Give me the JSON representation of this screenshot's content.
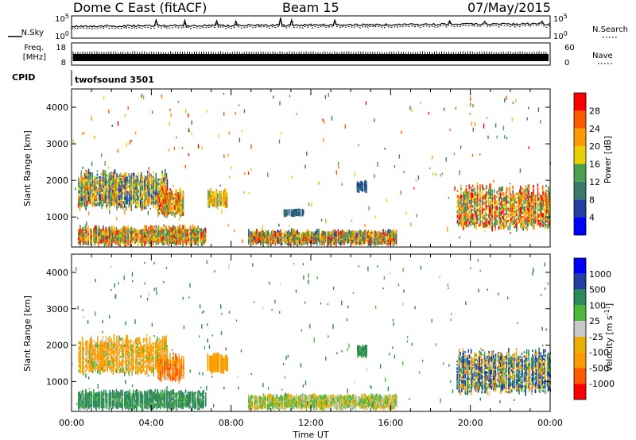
{
  "header": {
    "station": "Dome C East (fitACF)",
    "beam": "Beam 15",
    "date": "07/May/2015"
  },
  "summary_panels": {
    "nsky_label": "N.Sky",
    "nsearch_label": "N.Search",
    "nsky_ticks": [
      "10^5",
      "10^0"
    ],
    "freq_label_line1": "Freq.",
    "freq_label_line2": "[MHz]",
    "freq_ticks": [
      "18",
      "8"
    ],
    "nave_label": "Nave",
    "nave_ticks": [
      "60",
      "0"
    ],
    "cpid_label": "CPID",
    "cpid_value": "twofsound 3501"
  },
  "colors": {
    "power": [
      "#0000ff",
      "#2040a0",
      "#3a7a6a",
      "#4aa050",
      "#e8d000",
      "#ff9a00",
      "#ff5a00",
      "#ff0000"
    ],
    "velocity": [
      "#ff0000",
      "#ff5a00",
      "#ff9a00",
      "#e8b000",
      "#c8c8c8",
      "#4ab83a",
      "#2e8a5a",
      "#2040a0",
      "#0000ff"
    ]
  },
  "chart_data": [
    {
      "type": "heatmap",
      "title": "",
      "xlabel": "Time UT",
      "ylabel": "Slant Range [km]",
      "xlim": [
        "00:00",
        "24:00"
      ],
      "ylim": [
        180,
        4500
      ],
      "x_tick_labels": [
        "00:00",
        "04:00",
        "08:00",
        "12:00",
        "16:00",
        "20:00",
        "00:00"
      ],
      "y_tick_labels": [
        "1000",
        "2000",
        "3000",
        "4000"
      ],
      "colorbar_label": "Power [dB]",
      "colorbar_ticks": [
        "4",
        "8",
        "12",
        "16",
        "20",
        "24",
        "28"
      ],
      "colorbar_range": [
        0,
        32
      ],
      "echo_regions": [
        {
          "t_start": 0.3,
          "t_end": 6.7,
          "range_start": 230,
          "range_end": 750,
          "value_low": 8,
          "value_high": 30
        },
        {
          "t_start": 8.8,
          "t_end": 16.3,
          "range_start": 240,
          "range_end": 620,
          "value_low": 6,
          "value_high": 30
        },
        {
          "t_start": 0.3,
          "t_end": 4.8,
          "range_start": 1200,
          "range_end": 2300,
          "value_low": 4,
          "value_high": 26
        },
        {
          "t_start": 4.3,
          "t_end": 5.6,
          "range_start": 1000,
          "range_end": 1800,
          "value_low": 12,
          "value_high": 30
        },
        {
          "t_start": 6.8,
          "t_end": 7.8,
          "range_start": 1250,
          "range_end": 1750,
          "value_low": 12,
          "value_high": 26
        },
        {
          "t_start": 19.3,
          "t_end": 24.0,
          "range_start": 650,
          "range_end": 1950,
          "value_low": 8,
          "value_high": 32
        },
        {
          "t_start": 10.6,
          "t_end": 11.6,
          "range_start": 1050,
          "range_end": 1150,
          "value_low": 4,
          "value_high": 12
        },
        {
          "t_start": 14.3,
          "t_end": 14.8,
          "range_start": 1700,
          "range_end": 1950,
          "value_low": 4,
          "value_high": 12
        }
      ]
    },
    {
      "type": "heatmap",
      "title": "",
      "xlabel": "Time UT",
      "ylabel": "Slant Range [km]",
      "xlim": [
        "00:00",
        "24:00"
      ],
      "ylim": [
        180,
        4500
      ],
      "x_tick_labels": [
        "00:00",
        "04:00",
        "08:00",
        "12:00",
        "16:00",
        "20:00",
        "00:00"
      ],
      "y_tick_labels": [
        "1000",
        "2000",
        "3000",
        "4000"
      ],
      "colorbar_label": "Velocity [m s^-1]",
      "colorbar_ticks": [
        "1000",
        "500",
        "100",
        "25",
        "-25",
        "-100",
        "-500",
        "-1000"
      ],
      "echo_regions": [
        {
          "t_start": 0.3,
          "t_end": 6.7,
          "range_start": 230,
          "range_end": 750,
          "value_low": -25,
          "value_high": 500
        },
        {
          "t_start": 8.8,
          "t_end": 16.3,
          "range_start": 240,
          "range_end": 620,
          "value_low": -100,
          "value_high": 100
        },
        {
          "t_start": 0.3,
          "t_end": 4.8,
          "range_start": 1200,
          "range_end": 2300,
          "value_low": -500,
          "value_high": 100
        },
        {
          "t_start": 4.3,
          "t_end": 5.6,
          "range_start": 1000,
          "range_end": 1800,
          "value_low": -1000,
          "value_high": 25
        },
        {
          "t_start": 6.8,
          "t_end": 7.8,
          "range_start": 1250,
          "range_end": 1750,
          "value_low": -500,
          "value_high": -25
        },
        {
          "t_start": 19.3,
          "t_end": 24.0,
          "range_start": 650,
          "range_end": 1950,
          "value_low": -500,
          "value_high": 1000
        },
        {
          "t_start": 14.3,
          "t_end": 14.8,
          "range_start": 1700,
          "range_end": 1950,
          "value_low": 25,
          "value_high": 500
        }
      ]
    }
  ]
}
